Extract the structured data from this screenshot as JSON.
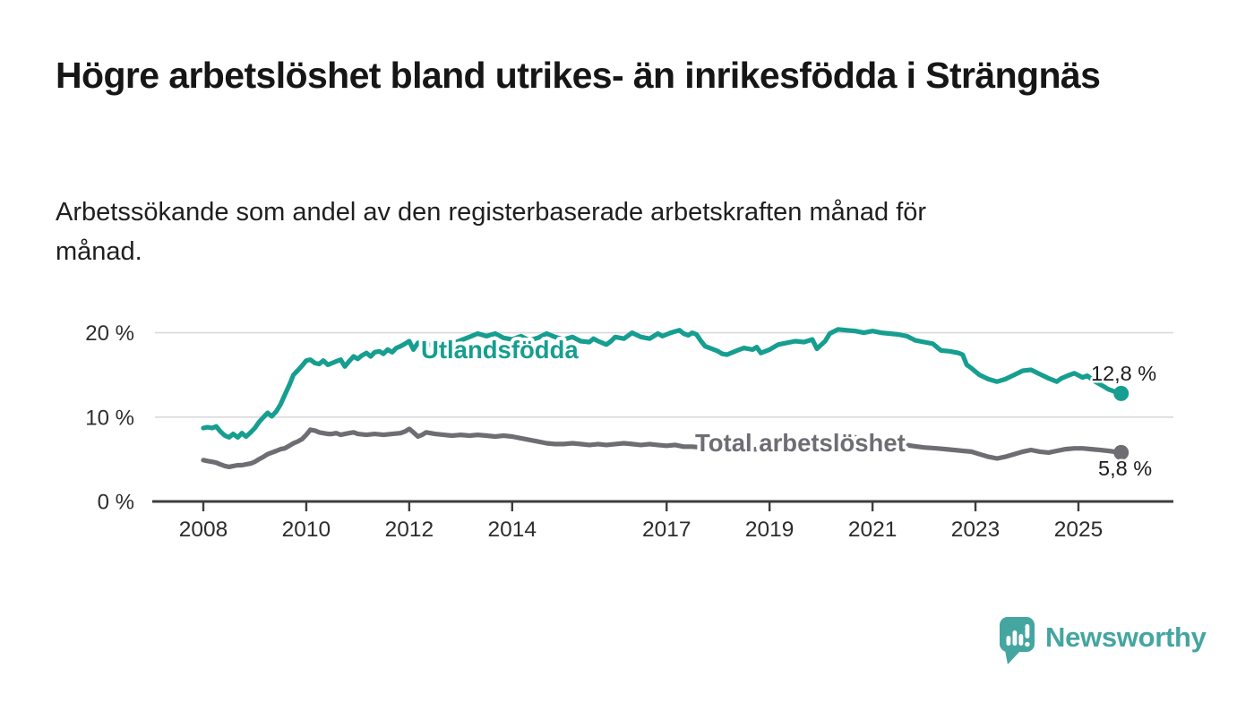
{
  "chart_data": {
    "type": "line",
    "title": "Högre arbetslöshet bland utrikes- än inrikesfödda i Strängnäs",
    "subtitle": "Arbetssökande som andel av den registerbaserade arbetskraften månad för månad.",
    "y_unit": "%",
    "ylim": [
      0,
      21.5
    ],
    "xlim_years": [
      2007.6,
      2026.4
    ],
    "grid": "horizontal-only",
    "legend_position": "inline-labels-on-lines",
    "axis_color": "#3d3d3d",
    "gridline_color": "#d9d9d9",
    "tick_label_color": "#2d2d2d",
    "y_ticks": [
      {
        "value": 0,
        "label": "0 %"
      },
      {
        "value": 10,
        "label": "10 %"
      },
      {
        "value": 20,
        "label": "20 %"
      }
    ],
    "x_ticks": [
      {
        "value": 2008,
        "label": "2008"
      },
      {
        "value": 2010,
        "label": "2010"
      },
      {
        "value": 2012,
        "label": "2012"
      },
      {
        "value": 2014,
        "label": "2014"
      },
      {
        "value": 2017,
        "label": "2017"
      },
      {
        "value": 2019,
        "label": "2019"
      },
      {
        "value": 2021,
        "label": "2021"
      },
      {
        "value": 2023,
        "label": "2023"
      },
      {
        "value": 2025,
        "label": "2025"
      }
    ],
    "series": [
      {
        "name": "Utlandsfödda",
        "color": "#169e90",
        "end_label": "12,8 %",
        "end_value": 12.8,
        "points": [
          [
            2008.0,
            8.7
          ],
          [
            2008.08,
            8.8
          ],
          [
            2008.17,
            8.7
          ],
          [
            2008.25,
            8.9
          ],
          [
            2008.33,
            8.3
          ],
          [
            2008.42,
            7.8
          ],
          [
            2008.5,
            7.6
          ],
          [
            2008.58,
            8.0
          ],
          [
            2008.67,
            7.6
          ],
          [
            2008.75,
            8.1
          ],
          [
            2008.83,
            7.7
          ],
          [
            2008.92,
            8.2
          ],
          [
            2009.0,
            8.7
          ],
          [
            2009.08,
            9.4
          ],
          [
            2009.17,
            10.0
          ],
          [
            2009.25,
            10.5
          ],
          [
            2009.33,
            10.1
          ],
          [
            2009.42,
            10.7
          ],
          [
            2009.5,
            11.5
          ],
          [
            2009.58,
            12.6
          ],
          [
            2009.67,
            13.8
          ],
          [
            2009.75,
            15.0
          ],
          [
            2009.83,
            15.5
          ],
          [
            2009.92,
            16.1
          ],
          [
            2010.0,
            16.7
          ],
          [
            2010.08,
            16.8
          ],
          [
            2010.17,
            16.4
          ],
          [
            2010.25,
            16.3
          ],
          [
            2010.33,
            16.7
          ],
          [
            2010.42,
            16.2
          ],
          [
            2010.5,
            16.4
          ],
          [
            2010.58,
            16.6
          ],
          [
            2010.67,
            16.8
          ],
          [
            2010.75,
            16.0
          ],
          [
            2010.83,
            16.6
          ],
          [
            2010.92,
            17.2
          ],
          [
            2011.0,
            16.9
          ],
          [
            2011.08,
            17.3
          ],
          [
            2011.17,
            17.6
          ],
          [
            2011.25,
            17.2
          ],
          [
            2011.33,
            17.7
          ],
          [
            2011.42,
            17.8
          ],
          [
            2011.5,
            17.5
          ],
          [
            2011.58,
            18.0
          ],
          [
            2011.67,
            17.7
          ],
          [
            2011.75,
            18.2
          ],
          [
            2011.83,
            18.4
          ],
          [
            2011.92,
            18.7
          ],
          [
            2012.0,
            19.0
          ],
          [
            2012.08,
            18.0
          ],
          [
            2012.17,
            18.8
          ],
          [
            2012.33,
            18.5
          ],
          [
            2012.5,
            18.7
          ],
          [
            2012.67,
            18.9
          ],
          [
            2012.83,
            18.7
          ],
          [
            2013.0,
            19.1
          ],
          [
            2013.17,
            19.5
          ],
          [
            2013.33,
            19.9
          ],
          [
            2013.5,
            19.6
          ],
          [
            2013.67,
            19.9
          ],
          [
            2013.83,
            19.4
          ],
          [
            2014.0,
            19.2
          ],
          [
            2014.17,
            19.6
          ],
          [
            2014.33,
            19.1
          ],
          [
            2014.5,
            19.4
          ],
          [
            2014.67,
            19.9
          ],
          [
            2014.83,
            19.5
          ],
          [
            2015.0,
            19.2
          ],
          [
            2015.17,
            19.5
          ],
          [
            2015.33,
            19.0
          ],
          [
            2015.5,
            18.9
          ],
          [
            2015.58,
            19.3
          ],
          [
            2015.67,
            19.0
          ],
          [
            2015.83,
            18.6
          ],
          [
            2015.92,
            19.0
          ],
          [
            2016.0,
            19.5
          ],
          [
            2016.17,
            19.3
          ],
          [
            2016.33,
            20.0
          ],
          [
            2016.5,
            19.5
          ],
          [
            2016.67,
            19.3
          ],
          [
            2016.83,
            19.9
          ],
          [
            2016.92,
            19.6
          ],
          [
            2017.0,
            19.8
          ],
          [
            2017.08,
            20.0
          ],
          [
            2017.25,
            20.3
          ],
          [
            2017.33,
            19.9
          ],
          [
            2017.42,
            19.7
          ],
          [
            2017.5,
            20.0
          ],
          [
            2017.58,
            19.8
          ],
          [
            2017.67,
            19.0
          ],
          [
            2017.75,
            18.4
          ],
          [
            2017.92,
            18.0
          ],
          [
            2018.0,
            17.8
          ],
          [
            2018.08,
            17.5
          ],
          [
            2018.17,
            17.4
          ],
          [
            2018.33,
            17.8
          ],
          [
            2018.5,
            18.2
          ],
          [
            2018.67,
            18.0
          ],
          [
            2018.75,
            18.3
          ],
          [
            2018.83,
            17.6
          ],
          [
            2019.0,
            18.0
          ],
          [
            2019.17,
            18.6
          ],
          [
            2019.33,
            18.8
          ],
          [
            2019.5,
            19.0
          ],
          [
            2019.67,
            18.9
          ],
          [
            2019.83,
            19.2
          ],
          [
            2019.92,
            18.1
          ],
          [
            2020.08,
            19.0
          ],
          [
            2020.17,
            19.9
          ],
          [
            2020.33,
            20.4
          ],
          [
            2020.5,
            20.3
          ],
          [
            2020.67,
            20.2
          ],
          [
            2020.83,
            20.0
          ],
          [
            2021.0,
            20.2
          ],
          [
            2021.17,
            20.0
          ],
          [
            2021.33,
            19.9
          ],
          [
            2021.5,
            19.8
          ],
          [
            2021.67,
            19.6
          ],
          [
            2021.83,
            19.1
          ],
          [
            2022.0,
            18.9
          ],
          [
            2022.17,
            18.7
          ],
          [
            2022.33,
            17.9
          ],
          [
            2022.5,
            17.8
          ],
          [
            2022.67,
            17.6
          ],
          [
            2022.75,
            17.4
          ],
          [
            2022.83,
            16.2
          ],
          [
            2022.92,
            15.8
          ],
          [
            2023.08,
            15.0
          ],
          [
            2023.25,
            14.5
          ],
          [
            2023.42,
            14.2
          ],
          [
            2023.58,
            14.5
          ],
          [
            2023.75,
            15.0
          ],
          [
            2023.92,
            15.5
          ],
          [
            2024.08,
            15.6
          ],
          [
            2024.25,
            15.1
          ],
          [
            2024.42,
            14.6
          ],
          [
            2024.58,
            14.2
          ],
          [
            2024.67,
            14.6
          ],
          [
            2024.83,
            15.0
          ],
          [
            2024.92,
            15.2
          ],
          [
            2025.08,
            14.7
          ],
          [
            2025.17,
            14.9
          ],
          [
            2025.33,
            14.2
          ],
          [
            2025.5,
            13.6
          ],
          [
            2025.58,
            13.3
          ],
          [
            2025.67,
            13.1
          ],
          [
            2025.83,
            12.8
          ]
        ]
      },
      {
        "name": "Total arbetslöshet",
        "color": "#6f6d74",
        "end_label": "5,8 %",
        "end_value": 5.8,
        "points": [
          [
            2008.0,
            4.9
          ],
          [
            2008.08,
            4.8
          ],
          [
            2008.17,
            4.7
          ],
          [
            2008.25,
            4.6
          ],
          [
            2008.33,
            4.4
          ],
          [
            2008.42,
            4.2
          ],
          [
            2008.5,
            4.1
          ],
          [
            2008.58,
            4.2
          ],
          [
            2008.67,
            4.3
          ],
          [
            2008.75,
            4.3
          ],
          [
            2008.83,
            4.4
          ],
          [
            2008.92,
            4.5
          ],
          [
            2009.0,
            4.7
          ],
          [
            2009.08,
            5.0
          ],
          [
            2009.17,
            5.3
          ],
          [
            2009.25,
            5.6
          ],
          [
            2009.33,
            5.8
          ],
          [
            2009.42,
            6.0
          ],
          [
            2009.5,
            6.2
          ],
          [
            2009.58,
            6.3
          ],
          [
            2009.67,
            6.6
          ],
          [
            2009.75,
            6.9
          ],
          [
            2009.83,
            7.1
          ],
          [
            2009.92,
            7.4
          ],
          [
            2010.0,
            7.9
          ],
          [
            2010.08,
            8.5
          ],
          [
            2010.17,
            8.4
          ],
          [
            2010.25,
            8.2
          ],
          [
            2010.33,
            8.1
          ],
          [
            2010.42,
            8.0
          ],
          [
            2010.5,
            8.0
          ],
          [
            2010.58,
            8.1
          ],
          [
            2010.67,
            7.9
          ],
          [
            2010.75,
            8.0
          ],
          [
            2010.83,
            8.1
          ],
          [
            2010.92,
            8.2
          ],
          [
            2011.0,
            8.0
          ],
          [
            2011.17,
            7.9
          ],
          [
            2011.33,
            8.0
          ],
          [
            2011.5,
            7.9
          ],
          [
            2011.67,
            8.0
          ],
          [
            2011.83,
            8.1
          ],
          [
            2011.92,
            8.3
          ],
          [
            2012.0,
            8.6
          ],
          [
            2012.08,
            8.2
          ],
          [
            2012.17,
            7.7
          ],
          [
            2012.25,
            7.9
          ],
          [
            2012.33,
            8.2
          ],
          [
            2012.5,
            8.0
          ],
          [
            2012.67,
            7.9
          ],
          [
            2012.83,
            7.8
          ],
          [
            2013.0,
            7.9
          ],
          [
            2013.17,
            7.8
          ],
          [
            2013.33,
            7.9
          ],
          [
            2013.5,
            7.8
          ],
          [
            2013.67,
            7.7
          ],
          [
            2013.83,
            7.8
          ],
          [
            2014.0,
            7.7
          ],
          [
            2014.17,
            7.5
          ],
          [
            2014.33,
            7.3
          ],
          [
            2014.5,
            7.1
          ],
          [
            2014.67,
            6.9
          ],
          [
            2014.83,
            6.8
          ],
          [
            2015.0,
            6.8
          ],
          [
            2015.17,
            6.9
          ],
          [
            2015.33,
            6.8
          ],
          [
            2015.5,
            6.7
          ],
          [
            2015.67,
            6.8
          ],
          [
            2015.83,
            6.7
          ],
          [
            2016.0,
            6.8
          ],
          [
            2016.17,
            6.9
          ],
          [
            2016.33,
            6.8
          ],
          [
            2016.5,
            6.7
          ],
          [
            2016.67,
            6.8
          ],
          [
            2016.83,
            6.7
          ],
          [
            2017.0,
            6.6
          ],
          [
            2017.17,
            6.7
          ],
          [
            2017.33,
            6.5
          ],
          [
            2017.5,
            6.5
          ],
          [
            2017.67,
            6.4
          ],
          [
            2017.83,
            6.3
          ],
          [
            2018.0,
            6.2
          ],
          [
            2018.25,
            6.2
          ],
          [
            2018.5,
            6.1
          ],
          [
            2018.75,
            6.2
          ],
          [
            2019.0,
            6.3
          ],
          [
            2019.25,
            6.4
          ],
          [
            2019.5,
            6.5
          ],
          [
            2019.75,
            6.6
          ],
          [
            2020.0,
            6.8
          ],
          [
            2020.17,
            7.3
          ],
          [
            2020.33,
            7.6
          ],
          [
            2020.5,
            7.7
          ],
          [
            2020.67,
            7.6
          ],
          [
            2020.83,
            7.4
          ],
          [
            2021.0,
            7.3
          ],
          [
            2021.25,
            7.1
          ],
          [
            2021.5,
            6.9
          ],
          [
            2021.75,
            6.6
          ],
          [
            2022.0,
            6.4
          ],
          [
            2022.25,
            6.3
          ],
          [
            2022.42,
            6.2
          ],
          [
            2022.58,
            6.1
          ],
          [
            2022.75,
            6.0
          ],
          [
            2022.92,
            5.9
          ],
          [
            2023.08,
            5.6
          ],
          [
            2023.25,
            5.3
          ],
          [
            2023.42,
            5.1
          ],
          [
            2023.58,
            5.3
          ],
          [
            2023.75,
            5.6
          ],
          [
            2023.92,
            5.9
          ],
          [
            2024.08,
            6.1
          ],
          [
            2024.25,
            5.9
          ],
          [
            2024.42,
            5.8
          ],
          [
            2024.58,
            6.0
          ],
          [
            2024.75,
            6.2
          ],
          [
            2024.92,
            6.3
          ],
          [
            2025.08,
            6.3
          ],
          [
            2025.25,
            6.2
          ],
          [
            2025.42,
            6.1
          ],
          [
            2025.58,
            6.0
          ],
          [
            2025.83,
            5.8
          ]
        ]
      }
    ]
  },
  "footer": {
    "brand": "Newsworthy",
    "logo_color": "#45a5a1",
    "logo_icon": "speech-bubble-bar-chart-icon"
  }
}
